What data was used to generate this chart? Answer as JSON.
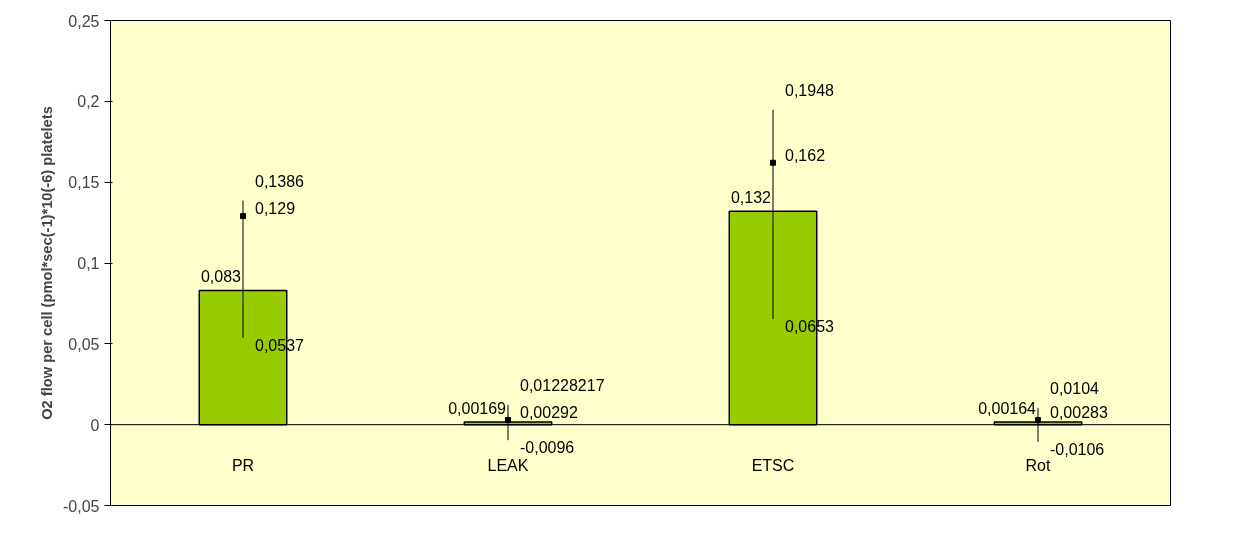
{
  "chart_data": {
    "type": "bar",
    "ylabel": "O2 flow per cell (pmol*sec(-1)*10(-6) platelets",
    "categories": [
      "PR",
      "LEAK",
      "ETSC",
      "Rot"
    ],
    "series": [
      {
        "color": "#99cc00",
        "values": [
          0.083,
          0.00169,
          0.132,
          0.00164
        ],
        "value_labels": [
          "0,083",
          "0,00169",
          "0,132",
          "0,00164"
        ],
        "errors": [
          [
            0.0537,
            0.1386
          ],
          [
            -0.0096,
            0.01228217
          ],
          [
            0.0653,
            0.1948
          ],
          [
            -0.0106,
            0.0104
          ]
        ]
      },
      {
        "type": "scatter",
        "color": "#000000",
        "marker": "square",
        "values": [
          0.129,
          0.00292,
          0.162,
          0.00283
        ],
        "value_labels": [
          "0,129",
          "0,00292",
          "0,162",
          "0,00283"
        ]
      }
    ],
    "annotations": [
      {
        "text": "0,1386",
        "x": "PR",
        "y": 0.1386
      },
      {
        "text": "0,0537",
        "x": "PR",
        "y": 0.0537
      },
      {
        "text": "0,01228217",
        "x": "LEAK",
        "y": 0.01228217
      },
      {
        "text": "-0,0096",
        "x": "LEAK",
        "y": -0.0096
      },
      {
        "text": "0,1948",
        "x": "ETSC",
        "y": 0.1948
      },
      {
        "text": "0,0653",
        "x": "ETSC",
        "y": 0.0653
      },
      {
        "text": "0,0104",
        "x": "Rot",
        "y": 0.0104
      },
      {
        "text": "-0,0106",
        "x": "Rot",
        "y": -0.0106
      }
    ],
    "ylim": [
      -0.05,
      0.25
    ],
    "yticks": [
      {
        "value": -0.05,
        "label": "-0,05"
      },
      0,
      {
        "value": 0.05,
        "label": "0,05"
      },
      {
        "value": 0.1,
        "label": "0,1"
      },
      {
        "value": 0.15,
        "label": "0,15"
      },
      {
        "value": 0.2,
        "label": "0,2"
      },
      {
        "value": 0.25,
        "label": "0,25"
      }
    ],
    "grid": false
  }
}
